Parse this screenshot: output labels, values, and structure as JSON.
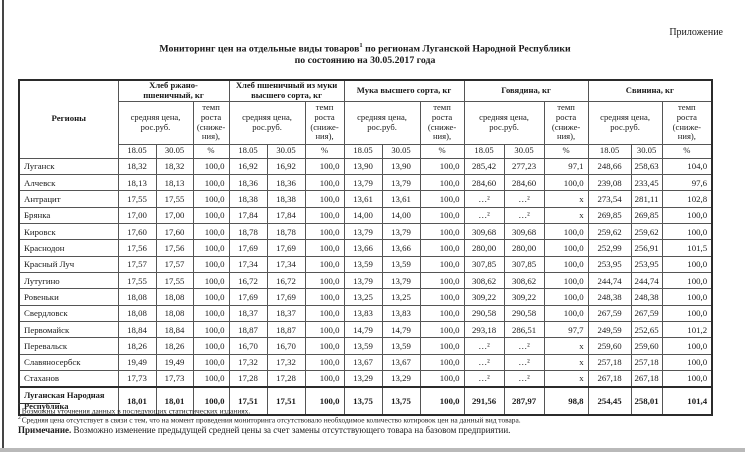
{
  "page": {
    "corner_label": "Приложение",
    "title": {
      "pre_sup": "Мониторинг цен на отдельные виды товаров",
      "sup": "1",
      "post_sup": " по регионам Луганской Народной Республики",
      "line2": "по состоянию на 30.05.2017 года"
    }
  },
  "table": {
    "region_header": "Регионы",
    "price_header": "средняя цена,\nрос.руб.",
    "rate_header": "темп\nроста\n(сниже-\nния),",
    "rate_unit": "%",
    "date_col1": "18.05",
    "date_col2": "30.05",
    "groups": [
      "Хлеб ржано-\nпшеничный, кг",
      "Хлеб пшеничный из муки\nвысшего сорта, кг",
      "Мука высшего сорта, кг",
      "Говядина, кг",
      "Свинина, кг"
    ],
    "rows": [
      {
        "region": "Луганск",
        "values": [
          "18,32",
          "18,32",
          "100,0",
          "16,92",
          "16,92",
          "100,0",
          "13,90",
          "13,90",
          "100,0",
          "285,42",
          "277,23",
          "97,1",
          "248,66",
          "258,63",
          "104,0"
        ]
      },
      {
        "region": "Алчевск",
        "values": [
          "18,13",
          "18,13",
          "100,0",
          "18,36",
          "18,36",
          "100,0",
          "13,79",
          "13,79",
          "100,0",
          "284,60",
          "284,60",
          "100,0",
          "239,08",
          "233,45",
          "97,6"
        ]
      },
      {
        "region": "Антрацит",
        "values": [
          "17,55",
          "17,55",
          "100,0",
          "18,38",
          "18,38",
          "100,0",
          "13,61",
          "13,61",
          "100,0",
          "…²",
          "…²",
          "x",
          "273,54",
          "281,11",
          "102,8"
        ]
      },
      {
        "region": "Брянка",
        "values": [
          "17,00",
          "17,00",
          "100,0",
          "17,84",
          "17,84",
          "100,0",
          "14,00",
          "14,00",
          "100,0",
          "…²",
          "…²",
          "x",
          "269,85",
          "269,85",
          "100,0"
        ]
      },
      {
        "region": "Кировск",
        "values": [
          "17,60",
          "17,60",
          "100,0",
          "18,78",
          "18,78",
          "100,0",
          "13,79",
          "13,79",
          "100,0",
          "309,68",
          "309,68",
          "100,0",
          "259,62",
          "259,62",
          "100,0"
        ]
      },
      {
        "region": "Краснодон",
        "values": [
          "17,56",
          "17,56",
          "100,0",
          "17,69",
          "17,69",
          "100,0",
          "13,66",
          "13,66",
          "100,0",
          "280,00",
          "280,00",
          "100,0",
          "252,99",
          "256,91",
          "101,5"
        ]
      },
      {
        "region": "Красный Луч",
        "values": [
          "17,57",
          "17,57",
          "100,0",
          "17,34",
          "17,34",
          "100,0",
          "13,59",
          "13,59",
          "100,0",
          "307,85",
          "307,85",
          "100,0",
          "253,95",
          "253,95",
          "100,0"
        ]
      },
      {
        "region": "Лутугино",
        "values": [
          "17,55",
          "17,55",
          "100,0",
          "16,72",
          "16,72",
          "100,0",
          "13,79",
          "13,79",
          "100,0",
          "308,62",
          "308,62",
          "100,0",
          "244,74",
          "244,74",
          "100,0"
        ]
      },
      {
        "region": "Ровеньки",
        "values": [
          "18,08",
          "18,08",
          "100,0",
          "17,69",
          "17,69",
          "100,0",
          "13,25",
          "13,25",
          "100,0",
          "309,22",
          "309,22",
          "100,0",
          "248,38",
          "248,38",
          "100,0"
        ]
      },
      {
        "region": "Свердловск",
        "values": [
          "18,08",
          "18,08",
          "100,0",
          "18,37",
          "18,37",
          "100,0",
          "13,83",
          "13,83",
          "100,0",
          "290,58",
          "290,58",
          "100,0",
          "267,59",
          "267,59",
          "100,0"
        ]
      },
      {
        "region": "Первомайск",
        "values": [
          "18,84",
          "18,84",
          "100,0",
          "18,87",
          "18,87",
          "100,0",
          "14,79",
          "14,79",
          "100,0",
          "293,18",
          "286,51",
          "97,7",
          "249,59",
          "252,65",
          "101,2"
        ]
      },
      {
        "region": "Перевальск",
        "values": [
          "18,26",
          "18,26",
          "100,0",
          "16,70",
          "16,70",
          "100,0",
          "13,59",
          "13,59",
          "100,0",
          "…²",
          "…²",
          "x",
          "259,60",
          "259,60",
          "100,0"
        ]
      },
      {
        "region": "Славяносербск",
        "values": [
          "19,49",
          "19,49",
          "100,0",
          "17,32",
          "17,32",
          "100,0",
          "13,67",
          "13,67",
          "100,0",
          "…²",
          "…²",
          "x",
          "257,18",
          "257,18",
          "100,0"
        ]
      },
      {
        "region": "Стаханов",
        "values": [
          "17,73",
          "17,73",
          "100,0",
          "17,28",
          "17,28",
          "100,0",
          "13,29",
          "13,29",
          "100,0",
          "…²",
          "…²",
          "x",
          "267,18",
          "267,18",
          "100,0"
        ]
      }
    ],
    "total": {
      "region": "Луганская Народная\nРеспублика",
      "values": [
        "18,01",
        "18,01",
        "100,0",
        "17,51",
        "17,51",
        "100,0",
        "13,75",
        "13,75",
        "100,0",
        "291,56",
        "287,97",
        "98,8",
        "254,45",
        "258,01",
        "101,4"
      ]
    }
  },
  "footnotes": {
    "fn1": {
      "marker": "1",
      "text": "Возможны уточнения данных в последующих статистических изданиях."
    },
    "fn2": {
      "marker": "2",
      "text": "Средняя цена отсутствует в связи с тем, что на момент проведения мониторинга отсутствовало необходимое количество котировок цен на данный вид товара."
    },
    "note_label": "Примечание.",
    "note_text": " Возможно изменение предыдущей средней цены за счет замены отсутствующего товара на базовом предприятии."
  }
}
